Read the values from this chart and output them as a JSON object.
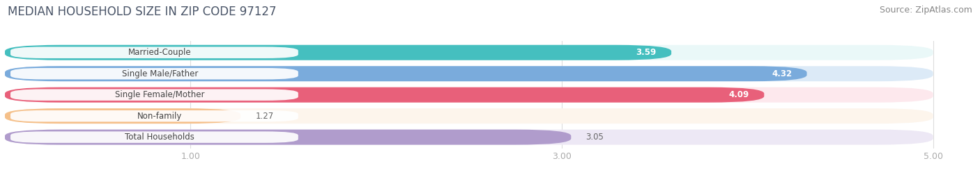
{
  "title": "MEDIAN HOUSEHOLD SIZE IN ZIP CODE 97127",
  "source": "Source: ZipAtlas.com",
  "categories": [
    "Married-Couple",
    "Single Male/Father",
    "Single Female/Mother",
    "Non-family",
    "Total Households"
  ],
  "values": [
    3.59,
    4.32,
    4.09,
    1.27,
    3.05
  ],
  "bar_colors": [
    "#45bfbf",
    "#7aabdc",
    "#e8607a",
    "#f5c08a",
    "#b09ccc"
  ],
  "bar_bg_colors": [
    "#eaf8f8",
    "#dceaf7",
    "#fde8ed",
    "#fdf5ec",
    "#ede8f5"
  ],
  "value_colors": [
    "white",
    "white",
    "white",
    "#888888",
    "#888888"
  ],
  "xlim_start": 0.0,
  "xlim_end": 5.2,
  "xmin": 0.0,
  "xmax": 5.0,
  "xticks": [
    1.0,
    3.0,
    5.0
  ],
  "xtick_labels": [
    "1.00",
    "3.00",
    "5.00"
  ],
  "title_fontsize": 12,
  "source_fontsize": 9,
  "label_fontsize": 8.5,
  "value_fontsize": 8.5,
  "background_color": "#ffffff",
  "grid_color": "#dddddd",
  "title_color": "#4a5568",
  "source_color": "#888888",
  "tick_color": "#aaaaaa"
}
